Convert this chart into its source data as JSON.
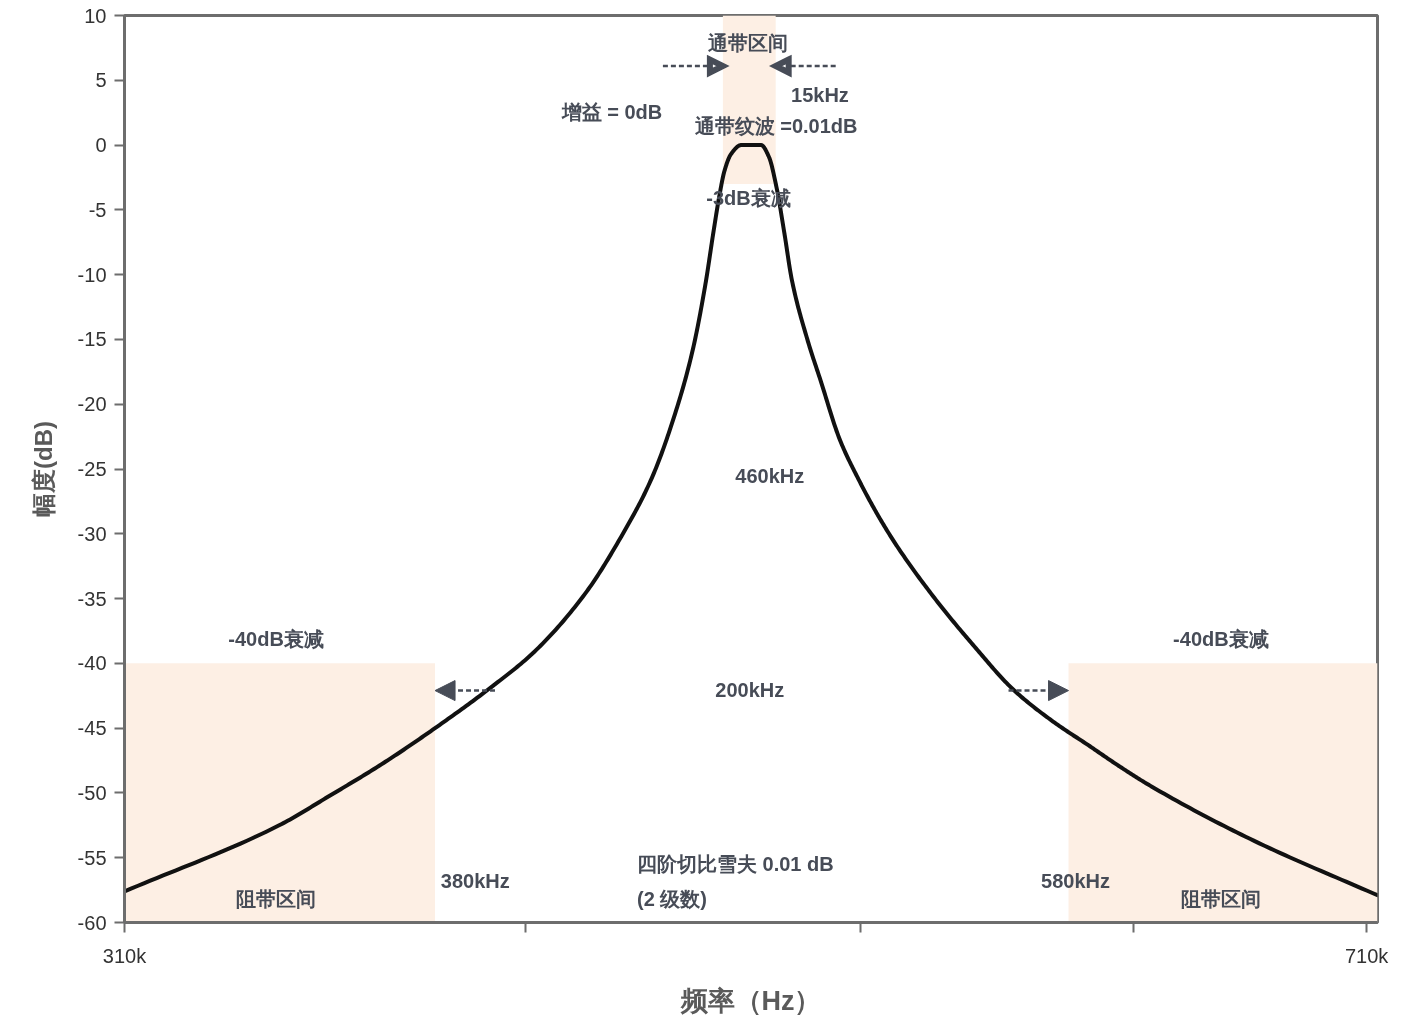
{
  "chart_data": {
    "type": "line",
    "xlabel": "频率（Hz）",
    "ylabel": "幅度(dB)",
    "xlim": [
      310000,
      713500
    ],
    "ylim": [
      -60,
      10
    ],
    "xticks": [
      {
        "value": 310000,
        "label": "310k"
      },
      {
        "value": 439000,
        "label": null
      },
      {
        "value": 547000,
        "label": null
      },
      {
        "value": 635000,
        "label": null
      },
      {
        "value": 710000,
        "label": "710k"
      }
    ],
    "yticks": [
      -60,
      -55,
      -50,
      -45,
      -40,
      -35,
      -30,
      -25,
      -20,
      -15,
      -10,
      -5,
      0,
      5,
      10
    ],
    "series": [
      {
        "type": "histogram",
        "color": "#fdefe4",
        "bins": [
          310000,
          410000
        ],
        "values": [
          20
        ],
        "base": [
          -60
        ]
      },
      {
        "type": "histogram",
        "color": "#fdefe4",
        "bins": [
          502700,
          519700
        ],
        "values": [
          13
        ],
        "base": [
          -3
        ]
      },
      {
        "type": "histogram",
        "color": "#fdefe4",
        "bins": [
          614000,
          713500
        ],
        "values": [
          20
        ],
        "base": [
          -60
        ]
      },
      {
        "color": "#111111",
        "x": [
          310000,
          359800,
          376200,
          392700,
          410000,
          427200,
          442000,
          458400,
          470000,
          479800,
          488000,
          493000,
          497100,
          499600,
          501500,
          503200,
          505300,
          508600,
          515000,
          517500,
          520000,
          522500,
          524900,
          529900,
          534200,
          540300,
          546600,
          552700,
          558900,
          571300,
          583700,
          596100,
          608500,
          620900,
          630100,
          640700,
          673800,
          713500
        ],
        "values": [
          -57.6,
          -52.5,
          -50.2,
          -47.8,
          -45.0,
          -42.0,
          -39.1,
          -34.6,
          -30.2,
          -25.7,
          -20.2,
          -15.8,
          -10.7,
          -6.8,
          -4.0,
          -2.0,
          -0.7,
          0,
          0,
          -0.9,
          -3.3,
          -6.8,
          -10.4,
          -15.0,
          -18.2,
          -22.7,
          -25.9,
          -28.6,
          -31.0,
          -35.1,
          -38.7,
          -42.0,
          -44.4,
          -46.4,
          -47.9,
          -49.5,
          -53.7,
          -57.9
        ]
      }
    ],
    "annotations": [
      "通带区间",
      "15kHz",
      "增益 = 0dB",
      "通带纹波 =0.01dB",
      "-3dB衰减",
      "460kHz",
      "-40dB衰减",
      "-40dB衰减",
      "200kHz",
      "四阶切比雪夫 0.01 dB",
      "(2 级数)",
      "380kHz",
      "580kHz",
      "阻带区间",
      "阻带区间"
    ]
  }
}
